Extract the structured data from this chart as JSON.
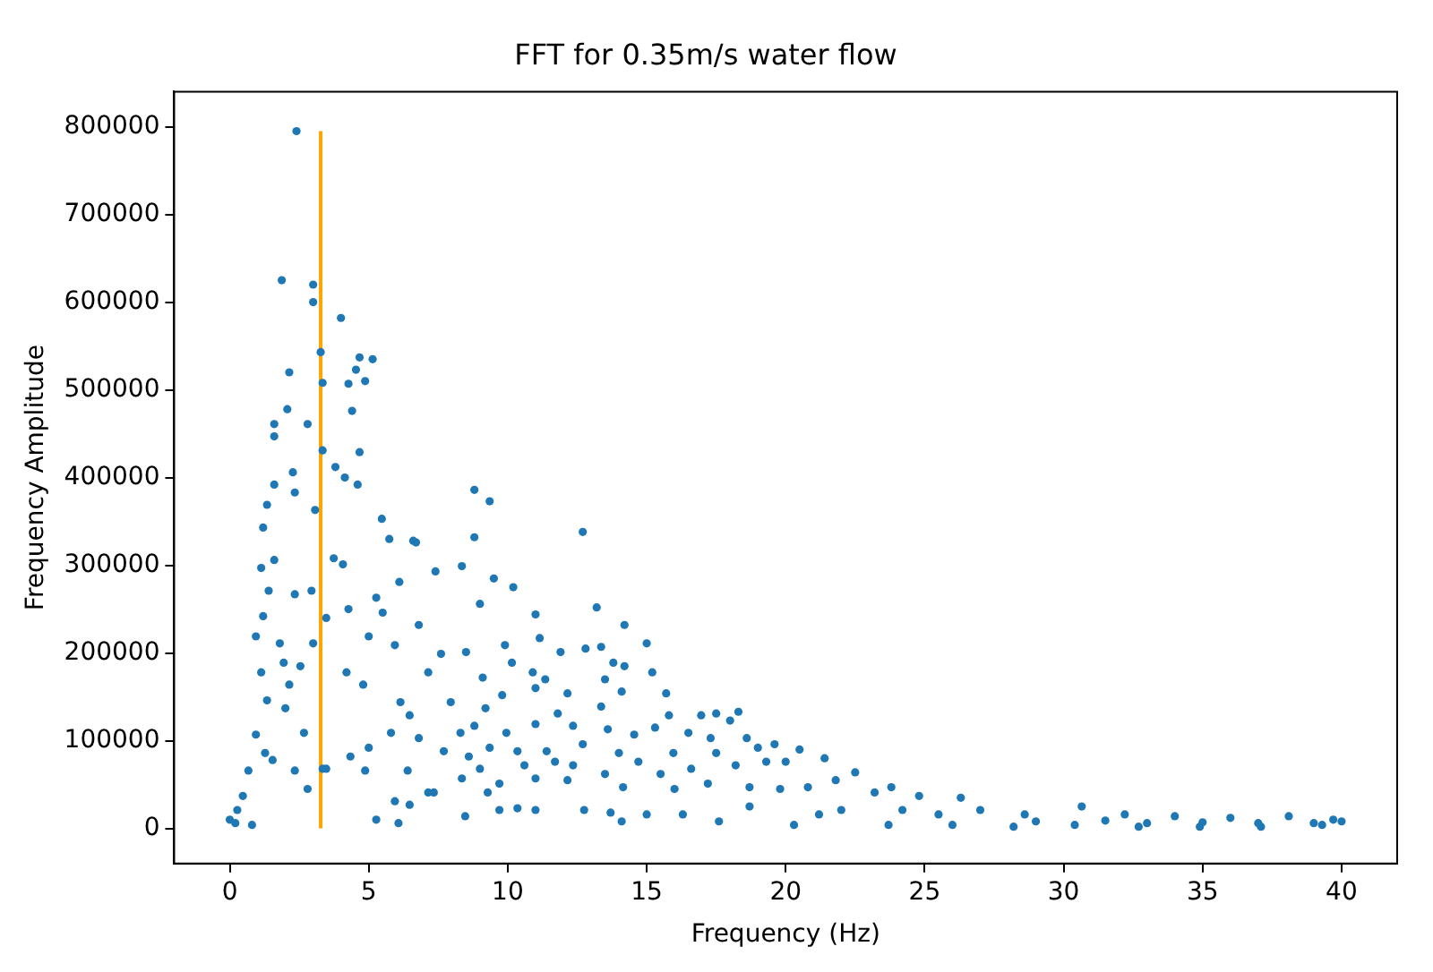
{
  "chart_data": {
    "type": "scatter",
    "title": "FFT for 0.35m/s water flow",
    "xlabel": "Frequency (Hz)",
    "ylabel": "Frequency Amplitude",
    "xlim": [
      -2,
      42
    ],
    "xticks": [
      0,
      5,
      10,
      15,
      20,
      25,
      30,
      35,
      40
    ],
    "ylim": [
      -40000,
      840000
    ],
    "yticks": [
      0,
      100000,
      200000,
      300000,
      400000,
      500000,
      600000,
      700000,
      800000
    ],
    "grid": false,
    "legend": false,
    "series": [
      {
        "color": "#1f77b4",
        "marker": "circle",
        "x": [
          2.4,
          1.87,
          3.0,
          3.0,
          4.0,
          4.67,
          5.14,
          4.54,
          2.14,
          2.07,
          1.6,
          4.4,
          4.27,
          4.87,
          4.67,
          1.6,
          2.8,
          2.27,
          1.6,
          1.34,
          2.34,
          3.8,
          4.14,
          4.6,
          1.2,
          3.07,
          5.47,
          5.74,
          6.6,
          1.13,
          1.6,
          3.74,
          4.07,
          1.4,
          2.94,
          2.34,
          3.47,
          4.27,
          1.2,
          0.94,
          3.0,
          1.8,
          1.13,
          1.94,
          2.54,
          4.2,
          1.34,
          2.14,
          2.0,
          2.67,
          0.94,
          1.27,
          1.54,
          2.34,
          0.67,
          0.47,
          0.27,
          0.8,
          0.0,
          0.2,
          2.8,
          3.34,
          5.27,
          6.07,
          6.47,
          7.34,
          8.47,
          8.8,
          9.35,
          8.8,
          12.7,
          9.5,
          10.2,
          9.0,
          11.0,
          13.2,
          14.2,
          11.15,
          15.0,
          9.9,
          11.9,
          12.8,
          13.36,
          13.8,
          14.2,
          10.15,
          10.9,
          9.1,
          15.2,
          11.35,
          13.5,
          9.8,
          11.0,
          12.15,
          14.1,
          15.7,
          9.2,
          11.8,
          13.36,
          15.8,
          16.96,
          17.5,
          18.3,
          8.8,
          9.95,
          11.0,
          12.35,
          13.6,
          14.55,
          15.3,
          16.5,
          17.3,
          18.0,
          18.6,
          9.35,
          10.35,
          11.4,
          12.7,
          14.0,
          15.96,
          17.5,
          19.0,
          19.6,
          20.5,
          9.0,
          10.6,
          11.7,
          12.35,
          13.5,
          14.7,
          15.5,
          16.6,
          18.2,
          19.3,
          20.0,
          21.4,
          9.7,
          11.0,
          12.15,
          14.15,
          16.0,
          17.2,
          18.7,
          19.8,
          20.8,
          21.8,
          9.7,
          10.35,
          11.0,
          12.75,
          13.7,
          14.1,
          15.0,
          16.3,
          17.6,
          18.7,
          20.3,
          21.2,
          22.0,
          22.5,
          23.2,
          23.8,
          24.8,
          26.3,
          24.2,
          25.5,
          27.0,
          28.6,
          30.65,
          32.2,
          34.0,
          36.0,
          38.1,
          39.7,
          23.7,
          26.0,
          28.2,
          30.4,
          32.7,
          34.9,
          37.1,
          39.3,
          29.0,
          31.5,
          33.0,
          35.0,
          37.0,
          39.0,
          40.0,
          6.7,
          7.4,
          8.35,
          6.1,
          5.27,
          5.5,
          5.0,
          5.94,
          6.8,
          7.6,
          8.5,
          4.8,
          6.14,
          7.14,
          7.95,
          6.47,
          5.8,
          6.8,
          8.3,
          4.34,
          5.0,
          7.7,
          8.6,
          4.87,
          6.4,
          8.35,
          3.47,
          5.94,
          7.14,
          9.28,
          3.27,
          3.34,
          3.34
        ],
        "values": [
          795000,
          625000,
          620000,
          600000,
          582000,
          537000,
          535000,
          523000,
          520000,
          478000,
          461000,
          476000,
          507000,
          510000,
          429000,
          447000,
          461000,
          406000,
          392000,
          369000,
          383000,
          412000,
          400000,
          392000,
          343000,
          363000,
          353000,
          330000,
          328000,
          297000,
          306000,
          308000,
          301000,
          271000,
          271000,
          267000,
          240000,
          250000,
          242000,
          219000,
          211000,
          211000,
          178000,
          189000,
          185000,
          178000,
          146000,
          164000,
          137000,
          109000,
          107000,
          86000,
          78000,
          66000,
          66000,
          37000,
          21000,
          4000,
          10000,
          6000,
          45000,
          68000,
          10000,
          6000,
          27000,
          41000,
          14000,
          386000,
          373000,
          332000,
          338000,
          285000,
          275000,
          256000,
          244000,
          252000,
          232000,
          217000,
          211000,
          209000,
          201000,
          205000,
          207000,
          189000,
          185000,
          189000,
          178000,
          172000,
          178000,
          170000,
          170000,
          152000,
          160000,
          154000,
          156000,
          154000,
          137000,
          131000,
          139000,
          129000,
          129000,
          131000,
          133000,
          117000,
          109000,
          119000,
          117000,
          113000,
          107000,
          115000,
          109000,
          103000,
          123000,
          103000,
          92000,
          88000,
          88000,
          96000,
          86000,
          86000,
          86000,
          92000,
          96000,
          90000,
          68000,
          72000,
          76000,
          72000,
          62000,
          76000,
          62000,
          68000,
          72000,
          76000,
          76000,
          80000,
          51000,
          57000,
          55000,
          47000,
          45000,
          51000,
          47000,
          45000,
          47000,
          55000,
          21000,
          23000,
          21000,
          21000,
          18000,
          8000,
          16000,
          16000,
          8000,
          25000,
          4000,
          16000,
          21000,
          64000,
          41000,
          47000,
          37000,
          35000,
          21000,
          16000,
          21000,
          16000,
          25000,
          16000,
          14000,
          12000,
          14000,
          10000,
          4000,
          4000,
          2000,
          4000,
          2000,
          2000,
          2000,
          4000,
          8000,
          9000,
          6000,
          7000,
          6000,
          6000,
          8000,
          326000,
          293000,
          299000,
          281000,
          263000,
          246000,
          219000,
          209000,
          232000,
          199000,
          201000,
          164000,
          144000,
          178000,
          144000,
          129000,
          109000,
          103000,
          109000,
          82000,
          92000,
          88000,
          82000,
          66000,
          66000,
          57000,
          68000,
          31000,
          41000,
          41000,
          543000,
          508000,
          431000
        ]
      },
      {
        "type": "line",
        "marker": "none",
        "color": "#ffa500",
        "x": [
          3.27,
          3.27
        ],
        "values": [
          0,
          795000
        ]
      }
    ]
  }
}
